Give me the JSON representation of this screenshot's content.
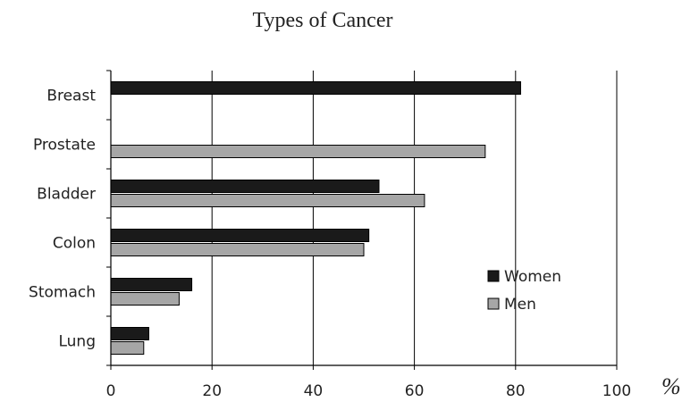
{
  "chart_data": {
    "type": "bar",
    "orientation": "horizontal",
    "title": "Types of Cancer",
    "xlabel": "",
    "ylabel": "",
    "unit": "%",
    "categories": [
      "Breast",
      "Prostate",
      "Bladder",
      "Colon",
      "Stomach",
      "Lung"
    ],
    "series": [
      {
        "name": "Women",
        "color": "#1a1a1a",
        "values": [
          81,
          null,
          53,
          51,
          16,
          7.5
        ]
      },
      {
        "name": "Men",
        "color": "#a6a6a6",
        "values": [
          null,
          74,
          62,
          50,
          13.5,
          6.5
        ]
      }
    ],
    "xlim": [
      0,
      100
    ],
    "xticks": [
      0,
      20,
      40,
      60,
      80,
      100
    ],
    "grid": true,
    "legend_position": "right"
  }
}
